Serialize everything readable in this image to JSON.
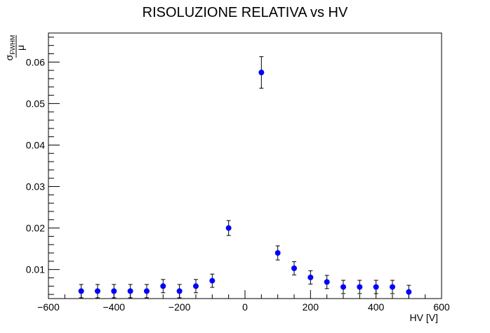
{
  "chart_data": {
    "type": "scatter",
    "title": "RISOLUZIONE RELATIVA vs HV",
    "xlabel": "HV [V]",
    "ylabel": {
      "numerator": "σ",
      "subscript": "FWHM",
      "denominator": "μ"
    },
    "xlim": [
      -600,
      600
    ],
    "ylim": [
      0.003,
      0.067
    ],
    "xticks": [
      -600,
      -400,
      -200,
      0,
      200,
      400,
      600
    ],
    "xtick_labels": [
      "−600",
      "−400",
      "−200",
      "0",
      "200",
      "400",
      "600"
    ],
    "yticks": [
      0.01,
      0.02,
      0.03,
      0.04,
      0.05,
      0.06
    ],
    "ytick_labels": [
      "0.01",
      "0.02",
      "0.03",
      "0.04",
      "0.05",
      "0.06"
    ],
    "grid": false,
    "marker_color": "#0000ff",
    "series": [
      {
        "points": [
          {
            "x": -500,
            "y": 0.0048,
            "err": 0.0016
          },
          {
            "x": -450,
            "y": 0.0048,
            "err": 0.0016
          },
          {
            "x": -400,
            "y": 0.0048,
            "err": 0.0016
          },
          {
            "x": -350,
            "y": 0.0048,
            "err": 0.0016
          },
          {
            "x": -300,
            "y": 0.0048,
            "err": 0.0016
          },
          {
            "x": -250,
            "y": 0.006,
            "err": 0.0016
          },
          {
            "x": -200,
            "y": 0.0048,
            "err": 0.0016
          },
          {
            "x": -150,
            "y": 0.006,
            "err": 0.0016
          },
          {
            "x": -100,
            "y": 0.0073,
            "err": 0.0016
          },
          {
            "x": -50,
            "y": 0.02,
            "err": 0.0018
          },
          {
            "x": 50,
            "y": 0.0575,
            "err": 0.0038
          },
          {
            "x": 100,
            "y": 0.014,
            "err": 0.0017
          },
          {
            "x": 150,
            "y": 0.0103,
            "err": 0.0016
          },
          {
            "x": 200,
            "y": 0.0081,
            "err": 0.0016
          },
          {
            "x": 250,
            "y": 0.007,
            "err": 0.0016
          },
          {
            "x": 300,
            "y": 0.0058,
            "err": 0.0016
          },
          {
            "x": 350,
            "y": 0.0058,
            "err": 0.0016
          },
          {
            "x": 400,
            "y": 0.0058,
            "err": 0.0016
          },
          {
            "x": 450,
            "y": 0.0058,
            "err": 0.0016
          },
          {
            "x": 500,
            "y": 0.0046,
            "err": 0.0016
          }
        ]
      }
    ]
  }
}
